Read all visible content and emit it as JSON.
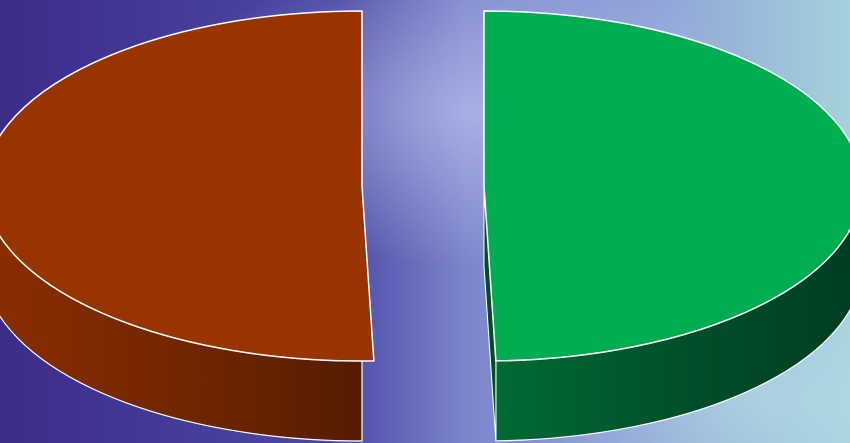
{
  "chart_data": {
    "type": "pie",
    "style": "3d-exploded",
    "title": "",
    "legend": "none",
    "data_labels": "none",
    "slices": [
      {
        "value": 50.5,
        "color": "#993300"
      },
      {
        "value": 49.5,
        "color": "#00AD50"
      }
    ]
  },
  "background": {
    "style": "blurred-photo",
    "colors": [
      "#3B2C8A",
      "#5A5FB5",
      "#9AA4DC",
      "#9FCFDA"
    ]
  }
}
